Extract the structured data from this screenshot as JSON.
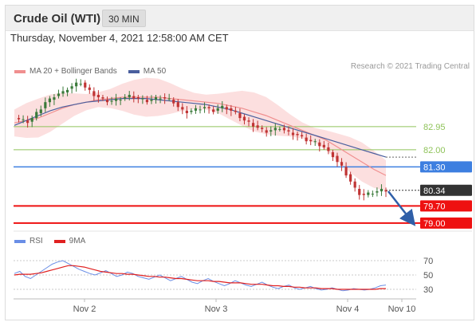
{
  "header": {
    "title": "Crude Oil (WTI)",
    "timeframe": "30 MIN",
    "datetime": "Thursday, November 4, 2021 12:58:00 AM CET",
    "credit": "Research © 2021 Trading Central"
  },
  "colors": {
    "candle_up": "#3a7a3a",
    "candle_down": "#c03434",
    "ma20": "#f08f8f",
    "ma50": "#4a5f9e",
    "bollinger_fill": "#fbd9d9",
    "support": "#ee1111",
    "pivot": "#3d7fe0",
    "resistance": "#8fc35a",
    "last_price": "#333333",
    "rsi": "#6a8ee6",
    "rsi_ma": "#e02020",
    "arrow": "#2f5fa8"
  },
  "chart_data": [
    {
      "type": "candlestick",
      "legend": [
        {
          "label": "MA 20 + Bollinger Bands",
          "color": "#f08f8f"
        },
        {
          "label": "MA 50",
          "color": "#4a5f9e"
        }
      ],
      "x_labels": [
        "Nov 2",
        "Nov 3",
        "Nov 4",
        "Nov 10"
      ],
      "ylim": [
        78.8,
        85.0
      ],
      "price_series": [
        83.3,
        83.25,
        83.2,
        83.15,
        83.3,
        83.5,
        83.7,
        83.95,
        84.05,
        84.2,
        84.3,
        84.35,
        84.5,
        84.6,
        84.7,
        84.75,
        84.55,
        84.4,
        84.25,
        84.15,
        84.05,
        84.0,
        84.0,
        84.05,
        84.1,
        84.15,
        84.2,
        84.15,
        84.1,
        84.05,
        84.0,
        84.05,
        84.1,
        84.15,
        84.1,
        84.05,
        83.95,
        83.75,
        83.6,
        83.55,
        83.6,
        83.65,
        83.7,
        83.75,
        83.65,
        83.6,
        83.7,
        83.75,
        83.7,
        83.6,
        83.5,
        83.35,
        83.2,
        83.1,
        83.0,
        82.9,
        82.8,
        82.75,
        82.8,
        82.85,
        82.9,
        82.8,
        82.7,
        82.65,
        82.6,
        82.5,
        82.4,
        82.35,
        82.3,
        82.2,
        82.1,
        81.9,
        81.75,
        81.5,
        81.3,
        81.0,
        80.7,
        80.4,
        80.2,
        80.15,
        80.2,
        80.25,
        80.3,
        80.35,
        80.34
      ],
      "ma20": [
        83.1,
        83.2,
        83.3,
        83.5,
        83.7,
        83.85,
        83.95,
        84.05,
        84.1,
        84.15,
        84.15,
        84.15,
        84.15,
        84.1,
        84.05,
        84.0,
        83.95,
        83.9,
        83.8,
        83.7,
        83.55,
        83.4,
        83.2,
        83.0,
        82.8,
        82.6,
        82.4,
        82.1,
        81.8,
        81.5,
        81.2,
        80.95
      ],
      "ma50": [
        83.0,
        83.2,
        83.4,
        83.6,
        83.75,
        83.85,
        83.95,
        84.0,
        84.05,
        84.1,
        84.1,
        84.1,
        84.05,
        84.0,
        83.95,
        83.9,
        83.85,
        83.75,
        83.65,
        83.5,
        83.35,
        83.2,
        83.05,
        82.9,
        82.75,
        82.6,
        82.45,
        82.3,
        82.15,
        82.0,
        81.85,
        81.7
      ],
      "levels": [
        {
          "label": "82.95",
          "value": 82.95,
          "kind": "resistance"
        },
        {
          "label": "82.00",
          "value": 82.0,
          "kind": "resistance"
        },
        {
          "label": "81.30",
          "value": 81.3,
          "kind": "pivot"
        },
        {
          "label": "80.34",
          "value": 80.34,
          "kind": "last_price"
        },
        {
          "label": "79.70",
          "value": 79.7,
          "kind": "support"
        },
        {
          "label": "79.00",
          "value": 79.0,
          "kind": "support"
        }
      ],
      "forecast_arrow": {
        "from_value": 80.3,
        "to_value": 79.0,
        "direction": "down"
      }
    },
    {
      "type": "line",
      "legend": [
        {
          "label": "RSI",
          "color": "#6a8ee6"
        },
        {
          "label": "9MA",
          "color": "#e02020"
        }
      ],
      "ylim": [
        20,
        80
      ],
      "y_ticks": [
        "70",
        "50",
        "30"
      ],
      "rsi": [
        52,
        55,
        48,
        45,
        50,
        55,
        60,
        65,
        68,
        70,
        66,
        62,
        58,
        55,
        52,
        50,
        53,
        56,
        52,
        48,
        50,
        54,
        52,
        48,
        46,
        44,
        47,
        50,
        46,
        42,
        45,
        48,
        44,
        40,
        38,
        42,
        45,
        41,
        38,
        35,
        38,
        42,
        39,
        36,
        34,
        37,
        40,
        36,
        33,
        31,
        34,
        36,
        32,
        30,
        32,
        34,
        31,
        29,
        30,
        32,
        30,
        28,
        29,
        31,
        30,
        29,
        30,
        32,
        35,
        36
      ],
      "rsi_ma": [
        50,
        51,
        51,
        51,
        52,
        53,
        55,
        57,
        59,
        61,
        63,
        63,
        62,
        61,
        59,
        57,
        55,
        54,
        53,
        52,
        52,
        51,
        51,
        50,
        49,
        48,
        48,
        47,
        47,
        46,
        45,
        45,
        44,
        43,
        42,
        42,
        42,
        41,
        41,
        40,
        39,
        39,
        39,
        38,
        37,
        37,
        37,
        36,
        35,
        35,
        34,
        34,
        33,
        33,
        32,
        32,
        32,
        31,
        31,
        31,
        30,
        30,
        30,
        30,
        30,
        30,
        30,
        30,
        31,
        31
      ]
    }
  ]
}
